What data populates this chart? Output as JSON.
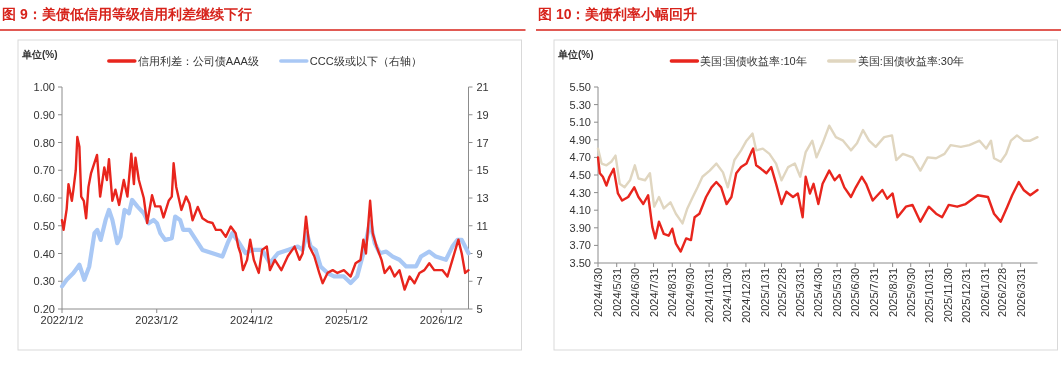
{
  "chart_data": [
    {
      "type": "line",
      "title": "图 9：美债低信用等级信用利差继续下行",
      "ylabel": "单位(%)",
      "legend": "top",
      "grid": false,
      "xlim": [
        "2022-01-02",
        "2026-04-17"
      ],
      "xticks": [
        {
          "value": "2022-01-02",
          "label": "2022/1/2"
        },
        {
          "value": "2023-01-02",
          "label": "2023/1/2"
        },
        {
          "value": "2024-01-02",
          "label": "2024/1/2"
        },
        {
          "value": "2025-01-02",
          "label": "2025/1/2"
        },
        {
          "value": "2026-01-02",
          "label": "2026/1/2"
        }
      ],
      "ylim": [
        0.2,
        1.0
      ],
      "yticks": [
        {
          "value": 0.2,
          "label": "0.20"
        },
        {
          "value": 0.3,
          "label": "0.30"
        },
        {
          "value": 0.4,
          "label": "0.40"
        },
        {
          "value": 0.5,
          "label": "0.50"
        },
        {
          "value": 0.6,
          "label": "0.60"
        },
        {
          "value": 0.7,
          "label": "0.70"
        },
        {
          "value": 0.8,
          "label": "0.80"
        },
        {
          "value": 0.9,
          "label": "0.90"
        },
        {
          "value": 1.0,
          "label": "1.00"
        }
      ],
      "y2lim": [
        5,
        21
      ],
      "y2ticks": [
        5,
        7,
        9,
        11,
        13,
        15,
        17,
        19,
        21
      ],
      "series": [
        {
          "name": "信用利差：公司债AAA级",
          "color": "#e8251d",
          "x": [
            "2022-01-02",
            "2022-01-08",
            "2022-01-20",
            "2022-01-27",
            "2022-02-09",
            "2022-02-15",
            "2022-02-24",
            "2022-03-02",
            "2022-03-10",
            "2022-03-17",
            "2022-03-27",
            "2022-04-05",
            "2022-04-14",
            "2022-04-24",
            "2022-05-17",
            "2022-05-29",
            "2022-06-14",
            "2022-06-24",
            "2022-07-02",
            "2022-07-15",
            "2022-07-27",
            "2022-08-10",
            "2022-08-28",
            "2022-09-11",
            "2022-09-26",
            "2022-10-06",
            "2022-10-12",
            "2022-10-25",
            "2022-11-13",
            "2022-11-26",
            "2022-12-15",
            "2022-12-27",
            "2023-01-16",
            "2023-01-28",
            "2023-02-17",
            "2023-03-01",
            "2023-03-08",
            "2023-03-18",
            "2023-04-07",
            "2023-04-25",
            "2023-05-08",
            "2023-05-20",
            "2023-06-09",
            "2023-06-27",
            "2023-07-16",
            "2023-08-05",
            "2023-08-18",
            "2023-09-06",
            "2023-09-25",
            "2023-10-14",
            "2023-11-02",
            "2023-11-12",
            "2023-11-21",
            "2023-11-30",
            "2023-12-16",
            "2023-12-28",
            "2024-01-11",
            "2024-01-30",
            "2024-02-12",
            "2024-03-01",
            "2024-03-13",
            "2024-04-01",
            "2024-04-26",
            "2024-05-21",
            "2024-06-16",
            "2024-07-05",
            "2024-07-17",
            "2024-07-30",
            "2024-08-12",
            "2024-08-31",
            "2024-09-19",
            "2024-10-02",
            "2024-10-21",
            "2024-11-10",
            "2024-11-28",
            "2024-12-23",
            "2025-01-18",
            "2025-02-06",
            "2025-02-25",
            "2025-03-08",
            "2025-03-18",
            "2025-04-03",
            "2025-04-13",
            "2025-04-28",
            "2025-05-17",
            "2025-05-29",
            "2025-06-18",
            "2025-07-06",
            "2025-07-25",
            "2025-08-14",
            "2025-09-02",
            "2025-09-21",
            "2025-10-10",
            "2025-10-29",
            "2025-11-17",
            "2025-12-06",
            "2026-01-07",
            "2026-01-26",
            "2026-02-14",
            "2026-03-09",
            "2026-03-22",
            "2026-04-04",
            "2026-04-17"
          ],
          "values": [
            0.52,
            0.485,
            0.56,
            0.65,
            0.59,
            0.63,
            0.7,
            0.82,
            0.785,
            0.605,
            0.59,
            0.527,
            0.64,
            0.69,
            0.755,
            0.605,
            0.71,
            0.665,
            0.74,
            0.59,
            0.63,
            0.575,
            0.665,
            0.605,
            0.76,
            0.65,
            0.745,
            0.665,
            0.6,
            0.51,
            0.61,
            0.57,
            0.57,
            0.53,
            0.59,
            0.605,
            0.725,
            0.64,
            0.557,
            0.605,
            0.58,
            0.52,
            0.568,
            0.527,
            0.515,
            0.51,
            0.485,
            0.485,
            0.46,
            0.497,
            0.473,
            0.425,
            0.4,
            0.34,
            0.377,
            0.45,
            0.377,
            0.33,
            0.413,
            0.425,
            0.34,
            0.377,
            0.34,
            0.39,
            0.425,
            0.377,
            0.4,
            0.533,
            0.425,
            0.39,
            0.33,
            0.293,
            0.33,
            0.34,
            0.33,
            0.34,
            0.317,
            0.365,
            0.377,
            0.45,
            0.4,
            0.59,
            0.473,
            0.425,
            0.377,
            0.33,
            0.353,
            0.317,
            0.34,
            0.27,
            0.317,
            0.293,
            0.33,
            0.34,
            0.365,
            0.34,
            0.34,
            0.317,
            0.377,
            0.45,
            0.4,
            0.33,
            0.34
          ]
        },
        {
          "name": "CCC级或以下（右轴）",
          "color": "#a9c8f5",
          "axis": "y2",
          "x": [
            "2022-01-02",
            "2022-01-20",
            "2022-02-15",
            "2022-03-10",
            "2022-03-29",
            "2022-04-17",
            "2022-05-07",
            "2022-05-18",
            "2022-05-31",
            "2022-06-19",
            "2022-07-02",
            "2022-07-15",
            "2022-08-03",
            "2022-08-15",
            "2022-08-31",
            "2022-09-17",
            "2022-09-29",
            "2022-10-20",
            "2022-11-13",
            "2022-12-02",
            "2022-12-21",
            "2023-01-03",
            "2023-01-16",
            "2023-02-04",
            "2023-03-01",
            "2023-03-14",
            "2023-04-02",
            "2023-04-14",
            "2023-05-08",
            "2023-06-02",
            "2023-06-27",
            "2023-08-05",
            "2023-09-12",
            "2023-10-02",
            "2023-10-20",
            "2023-11-08",
            "2023-12-10",
            "2024-01-04",
            "2024-02-12",
            "2024-03-13",
            "2024-04-13",
            "2024-05-21",
            "2024-06-28",
            "2024-07-17",
            "2024-08-02",
            "2024-08-17",
            "2024-09-05",
            "2024-09-24",
            "2024-10-21",
            "2024-11-15",
            "2024-12-23",
            "2025-01-18",
            "2025-02-12",
            "2025-03-08",
            "2025-04-03",
            "2025-04-21",
            "2025-05-10",
            "2025-06-04",
            "2025-06-29",
            "2025-07-25",
            "2025-08-20",
            "2025-09-27",
            "2025-10-16",
            "2025-11-17",
            "2025-12-12",
            "2026-01-20",
            "2026-02-14",
            "2026-03-05",
            "2026-03-22",
            "2026-04-17"
          ],
          "values": [
            6.63,
            7.11,
            7.59,
            8.19,
            7.11,
            8.07,
            10.46,
            10.7,
            9.98,
            11.42,
            12.14,
            11.42,
            9.74,
            10.22,
            12.14,
            11.9,
            12.86,
            12.38,
            11.9,
            11.18,
            11.42,
            11.18,
            10.46,
            9.98,
            10.1,
            11.66,
            11.42,
            10.7,
            10.7,
            9.98,
            9.26,
            9.02,
            8.78,
            9.74,
            10.46,
            9.98,
            9.02,
            9.26,
            9.26,
            8.31,
            9.02,
            9.26,
            9.5,
            9.26,
            10.46,
            9.5,
            9.26,
            8.07,
            7.59,
            7.35,
            7.35,
            6.87,
            7.35,
            9.02,
            11.3,
            9.74,
            9.02,
            9.14,
            8.78,
            8.55,
            8.07,
            8.07,
            8.78,
            9.14,
            8.78,
            8.55,
            9.5,
            9.98,
            9.98,
            9.02
          ]
        }
      ]
    },
    {
      "type": "line",
      "title": "图 10：美债利率小幅回升",
      "ylabel": "单位(%)",
      "legend": "top",
      "grid": false,
      "xlim": [
        "2024-04-30",
        "2026-04-28"
      ],
      "xticks": [
        {
          "value": "2024-04-30",
          "label": "2024/4/30"
        },
        {
          "value": "2024-05-31",
          "label": "2024/5/31"
        },
        {
          "value": "2024-06-30",
          "label": "2024/6/30"
        },
        {
          "value": "2024-07-31",
          "label": "2024/7/31"
        },
        {
          "value": "2024-08-31",
          "label": "2024/8/31"
        },
        {
          "value": "2024-09-30",
          "label": "2024/9/30"
        },
        {
          "value": "2024-10-31",
          "label": "2024/10/31"
        },
        {
          "value": "2024-11-30",
          "label": "2024/11/30"
        },
        {
          "value": "2024-12-31",
          "label": "2024/12/31"
        },
        {
          "value": "2025-01-31",
          "label": "2025/1/31"
        },
        {
          "value": "2025-02-28",
          "label": "2025/2/28"
        },
        {
          "value": "2025-03-31",
          "label": "2025/3/31"
        },
        {
          "value": "2025-04-30",
          "label": "2025/4/30"
        },
        {
          "value": "2025-05-31",
          "label": "2025/5/31"
        },
        {
          "value": "2025-06-30",
          "label": "2025/6/30"
        },
        {
          "value": "2025-07-31",
          "label": "2025/7/31"
        },
        {
          "value": "2025-08-31",
          "label": "2025/8/31"
        },
        {
          "value": "2025-09-30",
          "label": "2025/9/30"
        },
        {
          "value": "2025-10-31",
          "label": "2025/10/31"
        },
        {
          "value": "2025-11-30",
          "label": "2025/11/30"
        },
        {
          "value": "2025-12-31",
          "label": "2025/12/31"
        },
        {
          "value": "2026-01-31",
          "label": "2026/1/31"
        },
        {
          "value": "2026-02-28",
          "label": "2026/2/28"
        },
        {
          "value": "2026-03-31",
          "label": "2026/3/31"
        }
      ],
      "ylim": [
        3.5,
        5.5
      ],
      "yticks": [
        {
          "value": 3.5,
          "label": "3.50"
        },
        {
          "value": 3.7,
          "label": "3.70"
        },
        {
          "value": 3.9,
          "label": "3.90"
        },
        {
          "value": 4.1,
          "label": "4.10"
        },
        {
          "value": 4.3,
          "label": "4.30"
        },
        {
          "value": 4.5,
          "label": "4.50"
        },
        {
          "value": 4.7,
          "label": "4.70"
        },
        {
          "value": 4.9,
          "label": "4.90"
        },
        {
          "value": 5.1,
          "label": "5.10"
        },
        {
          "value": 5.3,
          "label": "5.30"
        },
        {
          "value": 5.5,
          "label": "5.50"
        }
      ],
      "series": [
        {
          "name": "美国:国债收益率:10年",
          "color": "#e8251d",
          "x": [
            "2024-04-30",
            "2024-05-03",
            "2024-05-08",
            "2024-05-14",
            "2024-05-19",
            "2024-05-26",
            "2024-06-02",
            "2024-06-09",
            "2024-06-19",
            "2024-06-29",
            "2024-07-06",
            "2024-07-14",
            "2024-07-22",
            "2024-07-29",
            "2024-08-03",
            "2024-08-09",
            "2024-08-17",
            "2024-08-25",
            "2024-08-31",
            "2024-09-06",
            "2024-09-14",
            "2024-09-23",
            "2024-10-01",
            "2024-10-07",
            "2024-10-15",
            "2024-10-26",
            "2024-11-04",
            "2024-11-12",
            "2024-11-20",
            "2024-11-29",
            "2024-12-07",
            "2024-12-15",
            "2024-12-23",
            "2025-01-01",
            "2025-01-09",
            "2025-01-12",
            "2025-01-17",
            "2025-01-25",
            "2025-02-03",
            "2025-02-11",
            "2025-02-19",
            "2025-02-28",
            "2025-03-08",
            "2025-03-19",
            "2025-03-27",
            "2025-04-04",
            "2025-04-09",
            "2025-04-16",
            "2025-04-22",
            "2025-04-30",
            "2025-05-07",
            "2025-05-18",
            "2025-05-27",
            "2025-06-04",
            "2025-06-12",
            "2025-06-23",
            "2025-07-01",
            "2025-07-11",
            "2025-07-18",
            "2025-07-29",
            "2025-08-14",
            "2025-08-22",
            "2025-08-31",
            "2025-09-08",
            "2025-09-22",
            "2025-10-03",
            "2025-10-16",
            "2025-10-30",
            "2025-11-11",
            "2025-11-21",
            "2025-12-02",
            "2025-12-16",
            "2025-12-30",
            "2026-01-19",
            "2026-02-05",
            "2026-02-15",
            "2026-02-26",
            "2026-03-09",
            "2026-03-17",
            "2026-03-28",
            "2026-04-05",
            "2026-04-16",
            "2026-04-28"
          ],
          "values": [
            4.7,
            4.52,
            4.48,
            4.38,
            4.48,
            4.57,
            4.29,
            4.21,
            4.25,
            4.36,
            4.25,
            4.17,
            4.27,
            3.91,
            3.78,
            3.97,
            3.83,
            3.81,
            3.89,
            3.72,
            3.63,
            3.78,
            3.76,
            4.02,
            4.06,
            4.25,
            4.36,
            4.42,
            4.36,
            4.17,
            4.25,
            4.52,
            4.59,
            4.63,
            4.76,
            4.8,
            4.61,
            4.57,
            4.52,
            4.59,
            4.4,
            4.17,
            4.31,
            4.25,
            4.29,
            4.02,
            4.48,
            4.29,
            4.4,
            4.17,
            4.4,
            4.55,
            4.44,
            4.5,
            4.36,
            4.25,
            4.36,
            4.48,
            4.4,
            4.21,
            4.33,
            4.23,
            4.29,
            4.02,
            4.14,
            4.16,
            3.97,
            4.14,
            4.06,
            4.02,
            4.16,
            4.14,
            4.17,
            4.27,
            4.25,
            4.06,
            3.97,
            4.14,
            4.27,
            4.42,
            4.33,
            4.27,
            4.33
          ]
        },
        {
          "name": "美国:国债收益率:30年",
          "color": "#e0d6c0",
          "x": [
            "2024-04-30",
            "2024-05-06",
            "2024-05-14",
            "2024-05-22",
            "2024-05-29",
            "2024-06-05",
            "2024-06-13",
            "2024-06-22",
            "2024-06-30",
            "2024-07-06",
            "2024-07-17",
            "2024-07-25",
            "2024-08-01",
            "2024-08-09",
            "2024-08-17",
            "2024-08-28",
            "2024-09-06",
            "2024-09-17",
            "2024-09-25",
            "2024-10-04",
            "2024-10-12",
            "2024-10-20",
            "2024-11-01",
            "2024-11-12",
            "2024-11-23",
            "2024-12-01",
            "2024-12-12",
            "2024-12-23",
            "2025-01-01",
            "2025-01-11",
            "2025-01-17",
            "2025-01-28",
            "2025-02-08",
            "2025-02-19",
            "2025-02-28",
            "2025-03-11",
            "2025-03-22",
            "2025-03-31",
            "2025-04-09",
            "2025-04-20",
            "2025-04-27",
            "2025-05-07",
            "2025-05-18",
            "2025-05-29",
            "2025-06-10",
            "2025-06-23",
            "2025-07-03",
            "2025-07-13",
            "2025-07-23",
            "2025-08-03",
            "2025-08-17",
            "2025-08-30",
            "2025-09-06",
            "2025-09-17",
            "2025-10-03",
            "2025-10-16",
            "2025-10-28",
            "2025-11-11",
            "2025-11-25",
            "2025-12-05",
            "2025-12-22",
            "2026-01-05",
            "2026-01-22",
            "2026-02-02",
            "2026-02-10",
            "2026-02-15",
            "2026-02-26",
            "2026-03-07",
            "2026-03-15",
            "2026-03-25",
            "2026-04-05",
            "2026-04-16",
            "2026-04-28"
          ],
          "values": [
            4.8,
            4.63,
            4.61,
            4.65,
            4.72,
            4.4,
            4.36,
            4.44,
            4.61,
            4.46,
            4.44,
            4.52,
            4.14,
            4.25,
            4.12,
            4.19,
            4.06,
            3.95,
            4.12,
            4.25,
            4.36,
            4.48,
            4.55,
            4.63,
            4.53,
            4.36,
            4.67,
            4.78,
            4.89,
            4.97,
            4.78,
            4.8,
            4.74,
            4.63,
            4.44,
            4.59,
            4.63,
            4.48,
            4.76,
            4.89,
            4.7,
            4.86,
            5.06,
            4.93,
            4.89,
            4.78,
            4.86,
            5.01,
            4.89,
            4.82,
            4.93,
            4.95,
            4.67,
            4.74,
            4.7,
            4.55,
            4.7,
            4.69,
            4.74,
            4.84,
            4.82,
            4.84,
            4.89,
            4.8,
            4.89,
            4.69,
            4.65,
            4.74,
            4.89,
            4.95,
            4.89,
            4.89,
            4.93
          ]
        }
      ]
    }
  ]
}
